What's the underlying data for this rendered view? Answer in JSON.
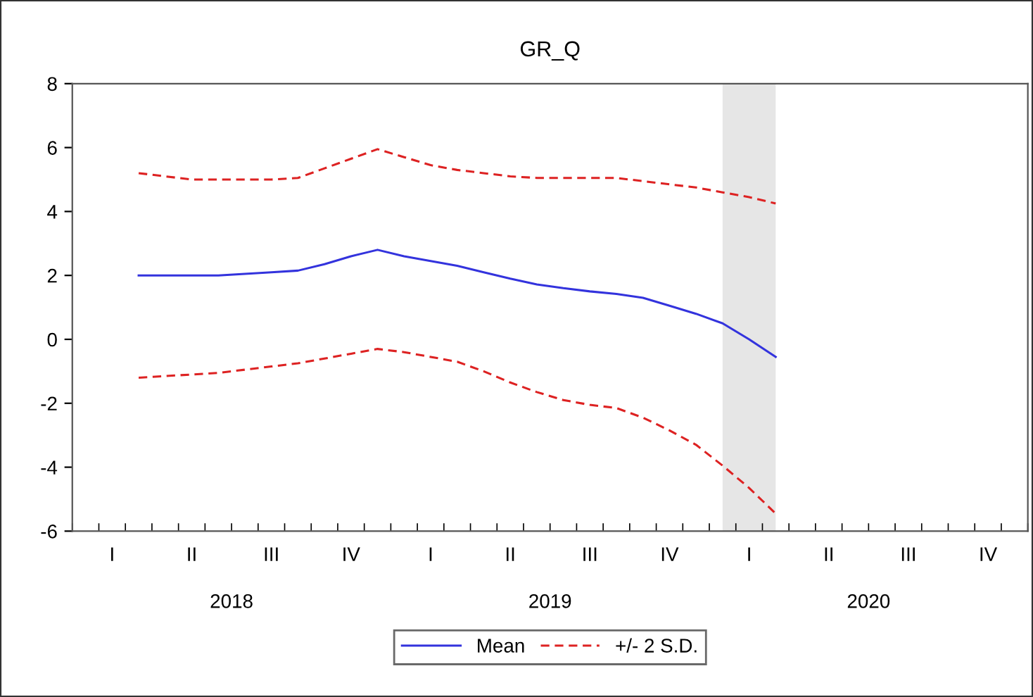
{
  "chart_data": {
    "type": "line",
    "title": "GR_Q",
    "categories": [
      null,
      "I",
      null,
      null,
      "II",
      null,
      null,
      "III",
      null,
      null,
      "IV",
      null,
      null,
      "I",
      null,
      null,
      "II",
      null,
      null,
      "III",
      null,
      null,
      "IV",
      null,
      null,
      "I",
      null,
      null,
      "II",
      null,
      null,
      "III",
      null,
      null,
      "IV",
      null
    ],
    "series": [
      {
        "name": "Mean",
        "color": "#3333dd",
        "line_style": "solid",
        "values": [
          null,
          null,
          2.0,
          2.0,
          2.0,
          2.0,
          2.05,
          2.1,
          2.15,
          2.35,
          2.6,
          2.8,
          2.6,
          2.45,
          2.3,
          2.1,
          1.9,
          1.72,
          1.6,
          1.5,
          1.42,
          1.3,
          1.05,
          0.8,
          0.5,
          0.0,
          -0.55,
          null,
          null,
          null,
          null,
          null,
          null,
          null,
          null,
          null
        ]
      },
      {
        "name": "+/- 2 S.D.",
        "color": "#dd2222",
        "line_style": "dashed",
        "values": [
          null,
          null,
          5.2,
          5.1,
          5.0,
          5.0,
          5.0,
          5.0,
          5.05,
          5.35,
          5.65,
          5.95,
          5.7,
          5.45,
          5.3,
          5.2,
          5.1,
          5.05,
          5.05,
          5.05,
          5.05,
          4.95,
          4.85,
          4.75,
          4.6,
          4.45,
          4.25,
          null,
          null,
          null,
          null,
          null,
          null,
          null,
          null,
          null
        ]
      },
      {
        "color": "#dd2222",
        "line_style": "dashed",
        "values": [
          null,
          null,
          -1.2,
          -1.15,
          -1.1,
          -1.05,
          -0.95,
          -0.85,
          -0.75,
          -0.6,
          -0.45,
          -0.3,
          -0.4,
          -0.55,
          -0.7,
          -1.0,
          -1.35,
          -1.65,
          -1.9,
          -2.05,
          -2.15,
          -2.45,
          -2.85,
          -3.3,
          -3.95,
          -4.65,
          -5.45,
          null,
          null,
          null,
          null,
          null,
          null,
          null,
          null,
          null
        ]
      }
    ],
    "annotations": [
      "2018",
      "2019",
      "2020"
    ],
    "ylim": [
      -6,
      8
    ],
    "yticks": [
      -6,
      -4,
      -2,
      0,
      2,
      4,
      6,
      8
    ],
    "grid": false,
    "legend": "bottom"
  }
}
